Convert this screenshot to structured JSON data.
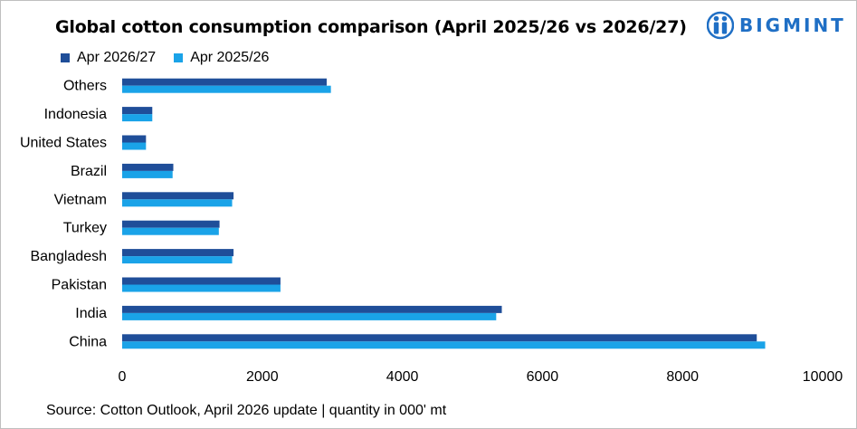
{
  "title": "Global cotton consumption comparison (April 2025/26 vs 2026/27)",
  "logo_text": "BIGMINT",
  "source": "Source: Cotton Outlook, April 2026 update | quantity in 000' mt",
  "colors": {
    "series_2026_27": "#1f4e99",
    "series_2025_26": "#1aa3e8",
    "logo": "#1f6fc5"
  },
  "chart_data": {
    "type": "bar",
    "orientation": "horizontal",
    "title": "Global cotton consumption comparison (April 2025/26 vs 2026/27)",
    "xlabel": "",
    "ylabel": "",
    "categories": [
      "Others",
      "Indonesia",
      "United States",
      "Brazil",
      "Vietnam",
      "Turkey",
      "Bangladesh",
      "Pakistan",
      "India",
      "China"
    ],
    "series": [
      {
        "name": "Apr 2026/27",
        "color": "#1f4e99",
        "values": [
          2920,
          430,
          340,
          730,
          1590,
          1390,
          1590,
          2260,
          5420,
          9060
        ]
      },
      {
        "name": "Apr 2025/26",
        "color": "#1aa3e8",
        "values": [
          2980,
          430,
          340,
          720,
          1570,
          1380,
          1570,
          2260,
          5340,
          9180
        ]
      }
    ],
    "xlim": [
      0,
      10000
    ],
    "xticks": [
      "0",
      "2000",
      "4000",
      "6000",
      "8000",
      "10000"
    ],
    "legend": "top-left",
    "grid": false
  }
}
